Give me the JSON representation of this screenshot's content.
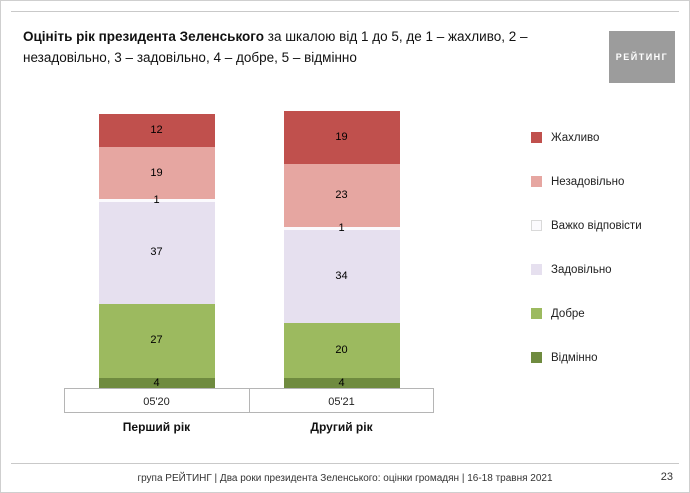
{
  "slide": {
    "title_bold": "Оцініть рік президента Зеленського",
    "title_rest": " за шкалою від 1 до 5, де 1 – жахливо, 2 – незадовільно, 3 – задовільно, 4 – добре, 5 – відмінно",
    "logo_text": "РЕЙТИНГ",
    "footer_text": "група РЕЙТИНГ | Два роки президента Зеленського: оцінки громадян | 16-18 травня 2021",
    "page_number": "23"
  },
  "chart_data": {
    "type": "bar",
    "stacked": true,
    "categories": [
      "05'20",
      "05'21"
    ],
    "category_group_labels": [
      "Перший рік",
      "Другий рік"
    ],
    "series": [
      {
        "name": "Жахливо",
        "color": "#c0504d",
        "values": [
          12,
          19
        ]
      },
      {
        "name": "Незадовільно",
        "color": "#e6a6a1",
        "values": [
          19,
          23
        ]
      },
      {
        "name": "Важко відповісти",
        "color": "#fbfafd",
        "values": [
          1,
          1
        ]
      },
      {
        "name": "Задовільно",
        "color": "#e6e0ef",
        "values": [
          37,
          34
        ]
      },
      {
        "name": "Добре",
        "color": "#9cba5f",
        "values": [
          27,
          20
        ]
      },
      {
        "name": "Відмінно",
        "color": "#6f8b3f",
        "values": [
          4,
          4
        ]
      }
    ],
    "ylim": [
      0,
      100
    ],
    "legend_position": "right",
    "value_labels": "inside"
  }
}
